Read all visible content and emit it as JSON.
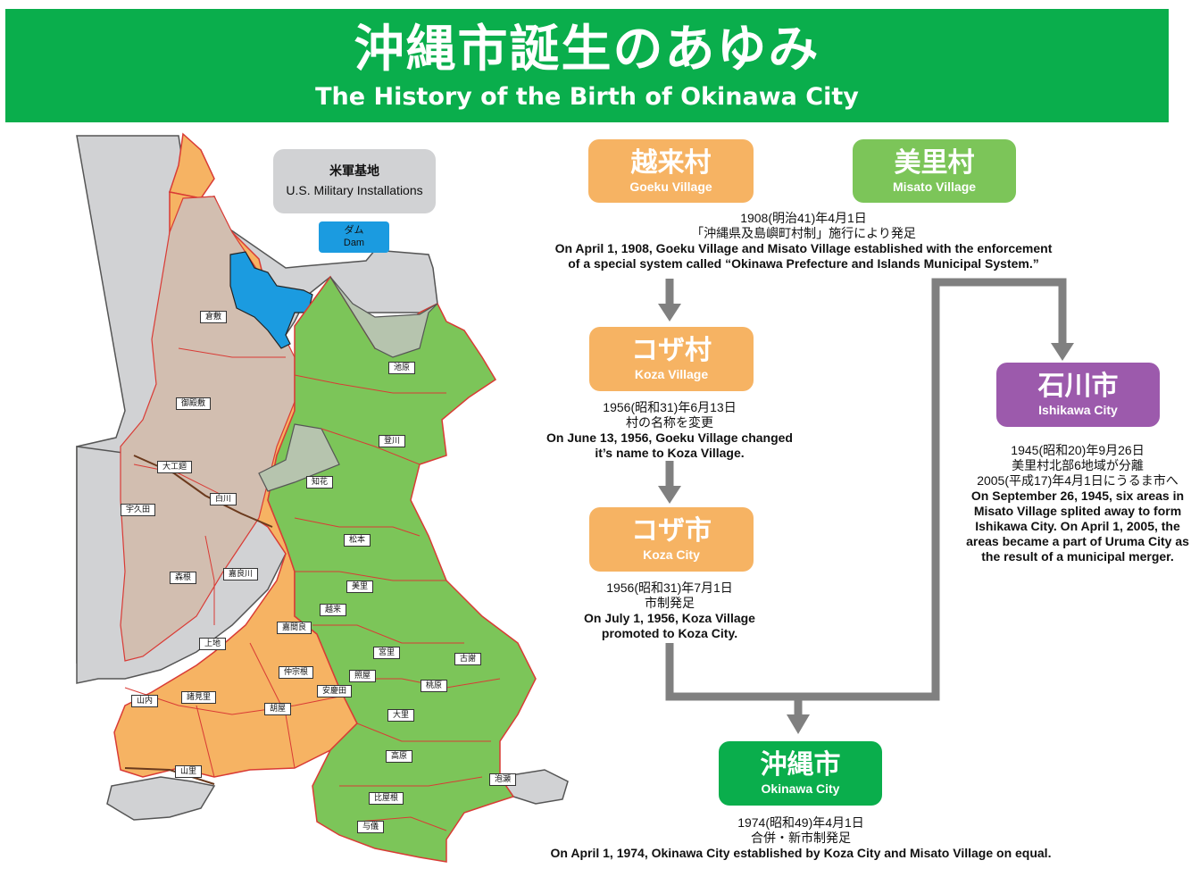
{
  "title": {
    "ja": "沖縄市誕生のあゆみ",
    "en": "The History of  the Birth of Okinawa City"
  },
  "legend": {
    "military_ja": "米軍基地",
    "military_en": "U.S. Military Installations",
    "dam_ja": "ダム",
    "dam_en": "Dam"
  },
  "colors": {
    "banner": "#0aae4c",
    "goeku": "#f6b363",
    "misato": "#7cc559",
    "okinawa": "#0aae4c",
    "ishikawa": "#9c5aac",
    "military": "#d1d2d4",
    "dam": "#1b9be0",
    "arrow": "#808080"
  },
  "map": {
    "places": [
      "倉敷",
      "御殿敷",
      "大工廻",
      "白川",
      "宇久田",
      "森根",
      "嘉良川",
      "上地",
      "池原",
      "登川",
      "知花",
      "松本",
      "美里",
      "越来",
      "嘉間良",
      "仲宗根",
      "照屋",
      "安慶田",
      "宮里",
      "古謝",
      "桃原",
      "山内",
      "諸見里",
      "胡屋",
      "大里",
      "高原",
      "泡瀬",
      "山里",
      "比屋根",
      "与儀"
    ]
  },
  "flow": {
    "goeku": {
      "ja": "越来村",
      "en": "Goeku Village"
    },
    "misato": {
      "ja": "美里村",
      "en": "Misato Village"
    },
    "note_1908": {
      "ja_date": "1908(明治41)年4月1日",
      "ja_text": "「沖縄県及島嶼町村制」施行により発足",
      "en_1": "On April 1, 1908, Goeku Village and Misato Village established with the enforcement",
      "en_2": "of a special system called “Okinawa Prefecture and Islands Municipal System.”"
    },
    "koza_village": {
      "ja": "コザ村",
      "en": "Koza Village"
    },
    "note_1956a": {
      "ja_date": "1956(昭和31)年6月13日",
      "ja_text": "村の名称を変更",
      "en_1": "On June 13, 1956, Goeku Village changed",
      "en_2": "it’s name to Koza Village."
    },
    "koza_city": {
      "ja": "コザ市",
      "en": "Koza City"
    },
    "note_1956b": {
      "ja_date": "1956(昭和31)年7月1日",
      "ja_text": "市制発足",
      "en_1": "On July 1, 1956, Koza Village",
      "en_2": "promoted to Koza City."
    },
    "ishikawa": {
      "ja": "石川市",
      "en": "Ishikawa City"
    },
    "note_ishikawa": {
      "ja_1": "1945(昭和20)年9月26日",
      "ja_2": "美里村北部6地域が分離",
      "ja_3": "2005(平成17)年4月1日にうるま市へ",
      "en_1": "On September 26, 1945, six areas in",
      "en_2": "Misato Village splited away to form",
      "en_3": "Ishikawa City. On April 1, 2005, the",
      "en_4": "areas became a part of Uruma City as",
      "en_5": "the result of a municipal merger."
    },
    "okinawa": {
      "ja": "沖縄市",
      "en": "Okinawa City"
    },
    "note_1974": {
      "ja_date": "1974(昭和49)年4月1日",
      "ja_text": "合併・新市制発足",
      "en_1": "On April 1, 1974, Okinawa City established by Koza City and Misato Village on equal."
    }
  }
}
